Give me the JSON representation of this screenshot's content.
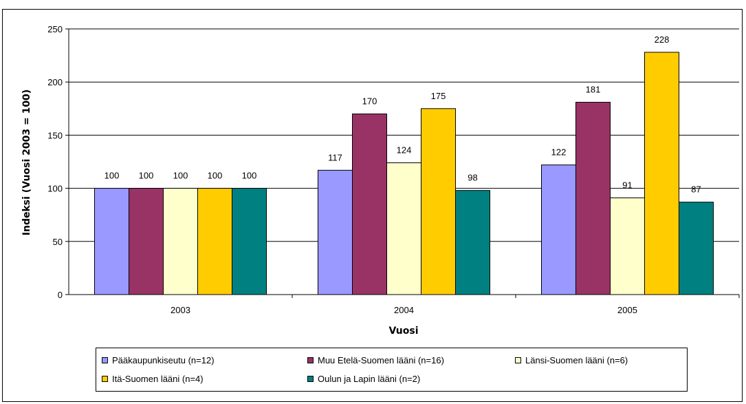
{
  "chart_data": {
    "type": "bar",
    "categories": [
      "2003",
      "2004",
      "2005"
    ],
    "series": [
      {
        "name": "Pääkaupunkiseutu (n=12)",
        "values": [
          100,
          117,
          122
        ],
        "color": "#9999FF"
      },
      {
        "name": "Muu Etelä-Suomen lääni (n=16)",
        "values": [
          100,
          170,
          181
        ],
        "color": "#993366"
      },
      {
        "name": "Länsi-Suomen lääni (n=6)",
        "values": [
          100,
          124,
          91
        ],
        "color": "#FFFFCC"
      },
      {
        "name": "Itä-Suomen lääni (n=4)",
        "values": [
          100,
          175,
          228
        ],
        "color": "#FFCC00"
      },
      {
        "name": "Oulun ja  Lapin lääni (n=2)",
        "values": [
          100,
          98,
          87
        ],
        "color": "#008080"
      }
    ],
    "xlabel": "Vuosi",
    "ylabel": "Indeksi (Vuosi 2003 = 100)",
    "ylim": [
      0,
      250
    ],
    "yticks": [
      "0",
      "50",
      "100",
      "150",
      "200",
      "250"
    ],
    "grid": true,
    "legend_position": "bottom"
  }
}
